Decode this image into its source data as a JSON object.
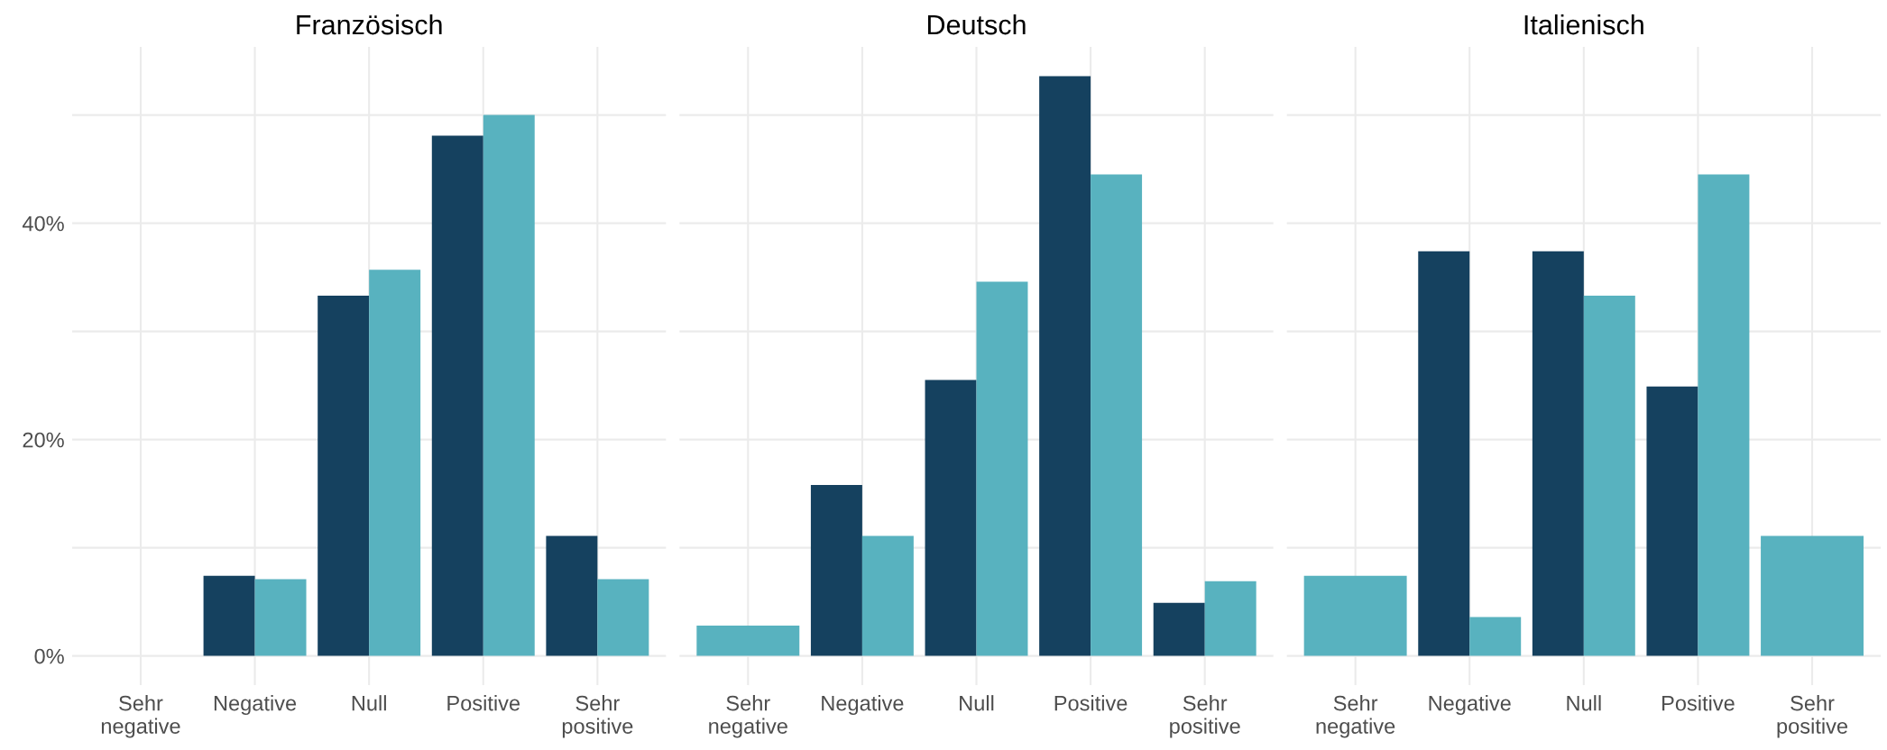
{
  "chart_data": [
    {
      "type": "bar",
      "title": "Französisch",
      "categories": [
        "Sehr\nnegative",
        "Negative",
        "Null",
        "Positive",
        "Sehr\npositive"
      ],
      "series": [
        {
          "color": "#15415f",
          "values": [
            null,
            7.4,
            33.3,
            48.1,
            11.1
          ]
        },
        {
          "color": "#58b2bf",
          "values": [
            null,
            7.1,
            35.7,
            50.0,
            7.1
          ]
        }
      ],
      "ylim": [
        -2.7,
        56.3
      ],
      "yticks": [
        {
          "value": 0,
          "label": "0%"
        },
        {
          "value": 10,
          "label": null
        },
        {
          "value": 20,
          "label": "20%"
        },
        {
          "value": 30,
          "label": null
        },
        {
          "value": 40,
          "label": "40%"
        },
        {
          "value": 50,
          "label": null
        }
      ],
      "grid": true
    },
    {
      "type": "bar",
      "title": "Deutsch",
      "categories": [
        "Sehr\nnegative",
        "Negative",
        "Null",
        "Positive",
        "Sehr\npositive"
      ],
      "series": [
        {
          "color": "#15415f",
          "values": [
            null,
            15.8,
            25.5,
            53.6,
            4.9
          ]
        },
        {
          "color": "#58b2bf",
          "values": [
            2.8,
            11.1,
            34.6,
            44.5,
            6.9
          ]
        }
      ],
      "ylim": [
        -2.7,
        56.3
      ],
      "yticks": [
        {
          "value": 0,
          "label": null
        },
        {
          "value": 10,
          "label": null
        },
        {
          "value": 20,
          "label": null
        },
        {
          "value": 30,
          "label": null
        },
        {
          "value": 40,
          "label": null
        },
        {
          "value": 50,
          "label": null
        }
      ],
      "grid": true,
      "tick_labels": "x"
    },
    {
      "type": "bar",
      "title": "Italienisch",
      "categories": [
        "Sehr\nnegative",
        "Negative",
        "Null",
        "Positive",
        "Sehr\npositive"
      ],
      "series": [
        {
          "color": "#15415f",
          "values": [
            null,
            37.4,
            37.4,
            24.9,
            null
          ]
        },
        {
          "color": "#58b2bf",
          "values": [
            7.4,
            3.6,
            33.3,
            44.5,
            11.1
          ]
        }
      ],
      "ylim": [
        -2.7,
        56.3
      ],
      "yticks": [
        {
          "value": 0,
          "label": null
        },
        {
          "value": 10,
          "label": null
        },
        {
          "value": 20,
          "label": null
        },
        {
          "value": 30,
          "label": null
        },
        {
          "value": 40,
          "label": null
        },
        {
          "value": 50,
          "label": null
        }
      ],
      "grid": true,
      "tick_labels": "x"
    }
  ]
}
